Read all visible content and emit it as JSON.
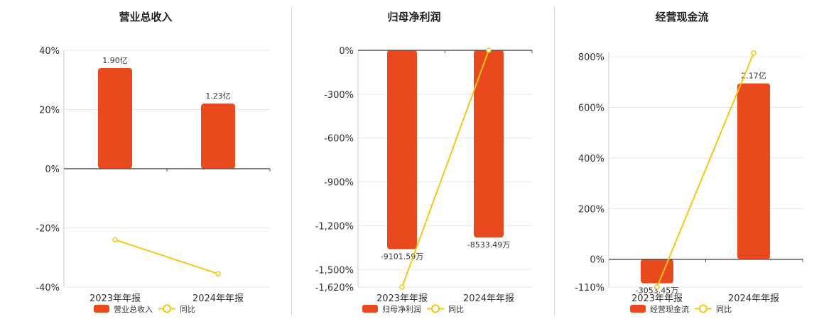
{
  "colors": {
    "bar": "#e8491d",
    "line": "#f2c811",
    "grid": "#e6e6e6",
    "axis": "#555555"
  },
  "chart_data": [
    {
      "type": "bar",
      "title": "营业总收入",
      "categories": [
        "2023年年报",
        "2024年年报"
      ],
      "ylim": [
        -40,
        40
      ],
      "yticks": [
        "40%",
        "20%",
        "0%",
        "-20%",
        "-40%"
      ],
      "grid": true,
      "legend_position": "bottom",
      "series": [
        {
          "name": "营业总收入",
          "type": "bar",
          "values": [
            34,
            22
          ],
          "labels": [
            "1.90亿",
            "1.23亿"
          ]
        },
        {
          "name": "同比",
          "type": "line",
          "values": [
            -24,
            -35.5
          ]
        }
      ]
    },
    {
      "type": "bar",
      "title": "归母净利润",
      "categories": [
        "2023年年报",
        "2024年年报"
      ],
      "ylim": [
        -1620,
        0
      ],
      "yticks": [
        "0%",
        "-300%",
        "-600%",
        "-900%",
        "-1,200%",
        "-1,500%",
        "-1,620%"
      ],
      "grid": true,
      "legend_position": "bottom",
      "series": [
        {
          "name": "归母净利润",
          "type": "bar",
          "values": [
            -1360,
            -1280
          ],
          "labels": [
            "-9101.59万",
            "-8533.49万"
          ]
        },
        {
          "name": "同比",
          "type": "line",
          "values": [
            -1620,
            0
          ]
        }
      ]
    },
    {
      "type": "bar",
      "title": "经营现金流",
      "categories": [
        "2023年年报",
        "2024年年报"
      ],
      "ylim": [
        -110,
        820
      ],
      "yticks": [
        "800%",
        "600%",
        "400%",
        "200%",
        "0%",
        "-110%"
      ],
      "grid": true,
      "legend_position": "bottom",
      "series": [
        {
          "name": "经营现金流",
          "type": "bar",
          "values": [
            -95,
            695
          ],
          "labels": [
            "-3053.45万",
            "2.17亿"
          ]
        },
        {
          "name": "同比",
          "type": "line",
          "values": [
            -110,
            815
          ]
        }
      ]
    }
  ]
}
